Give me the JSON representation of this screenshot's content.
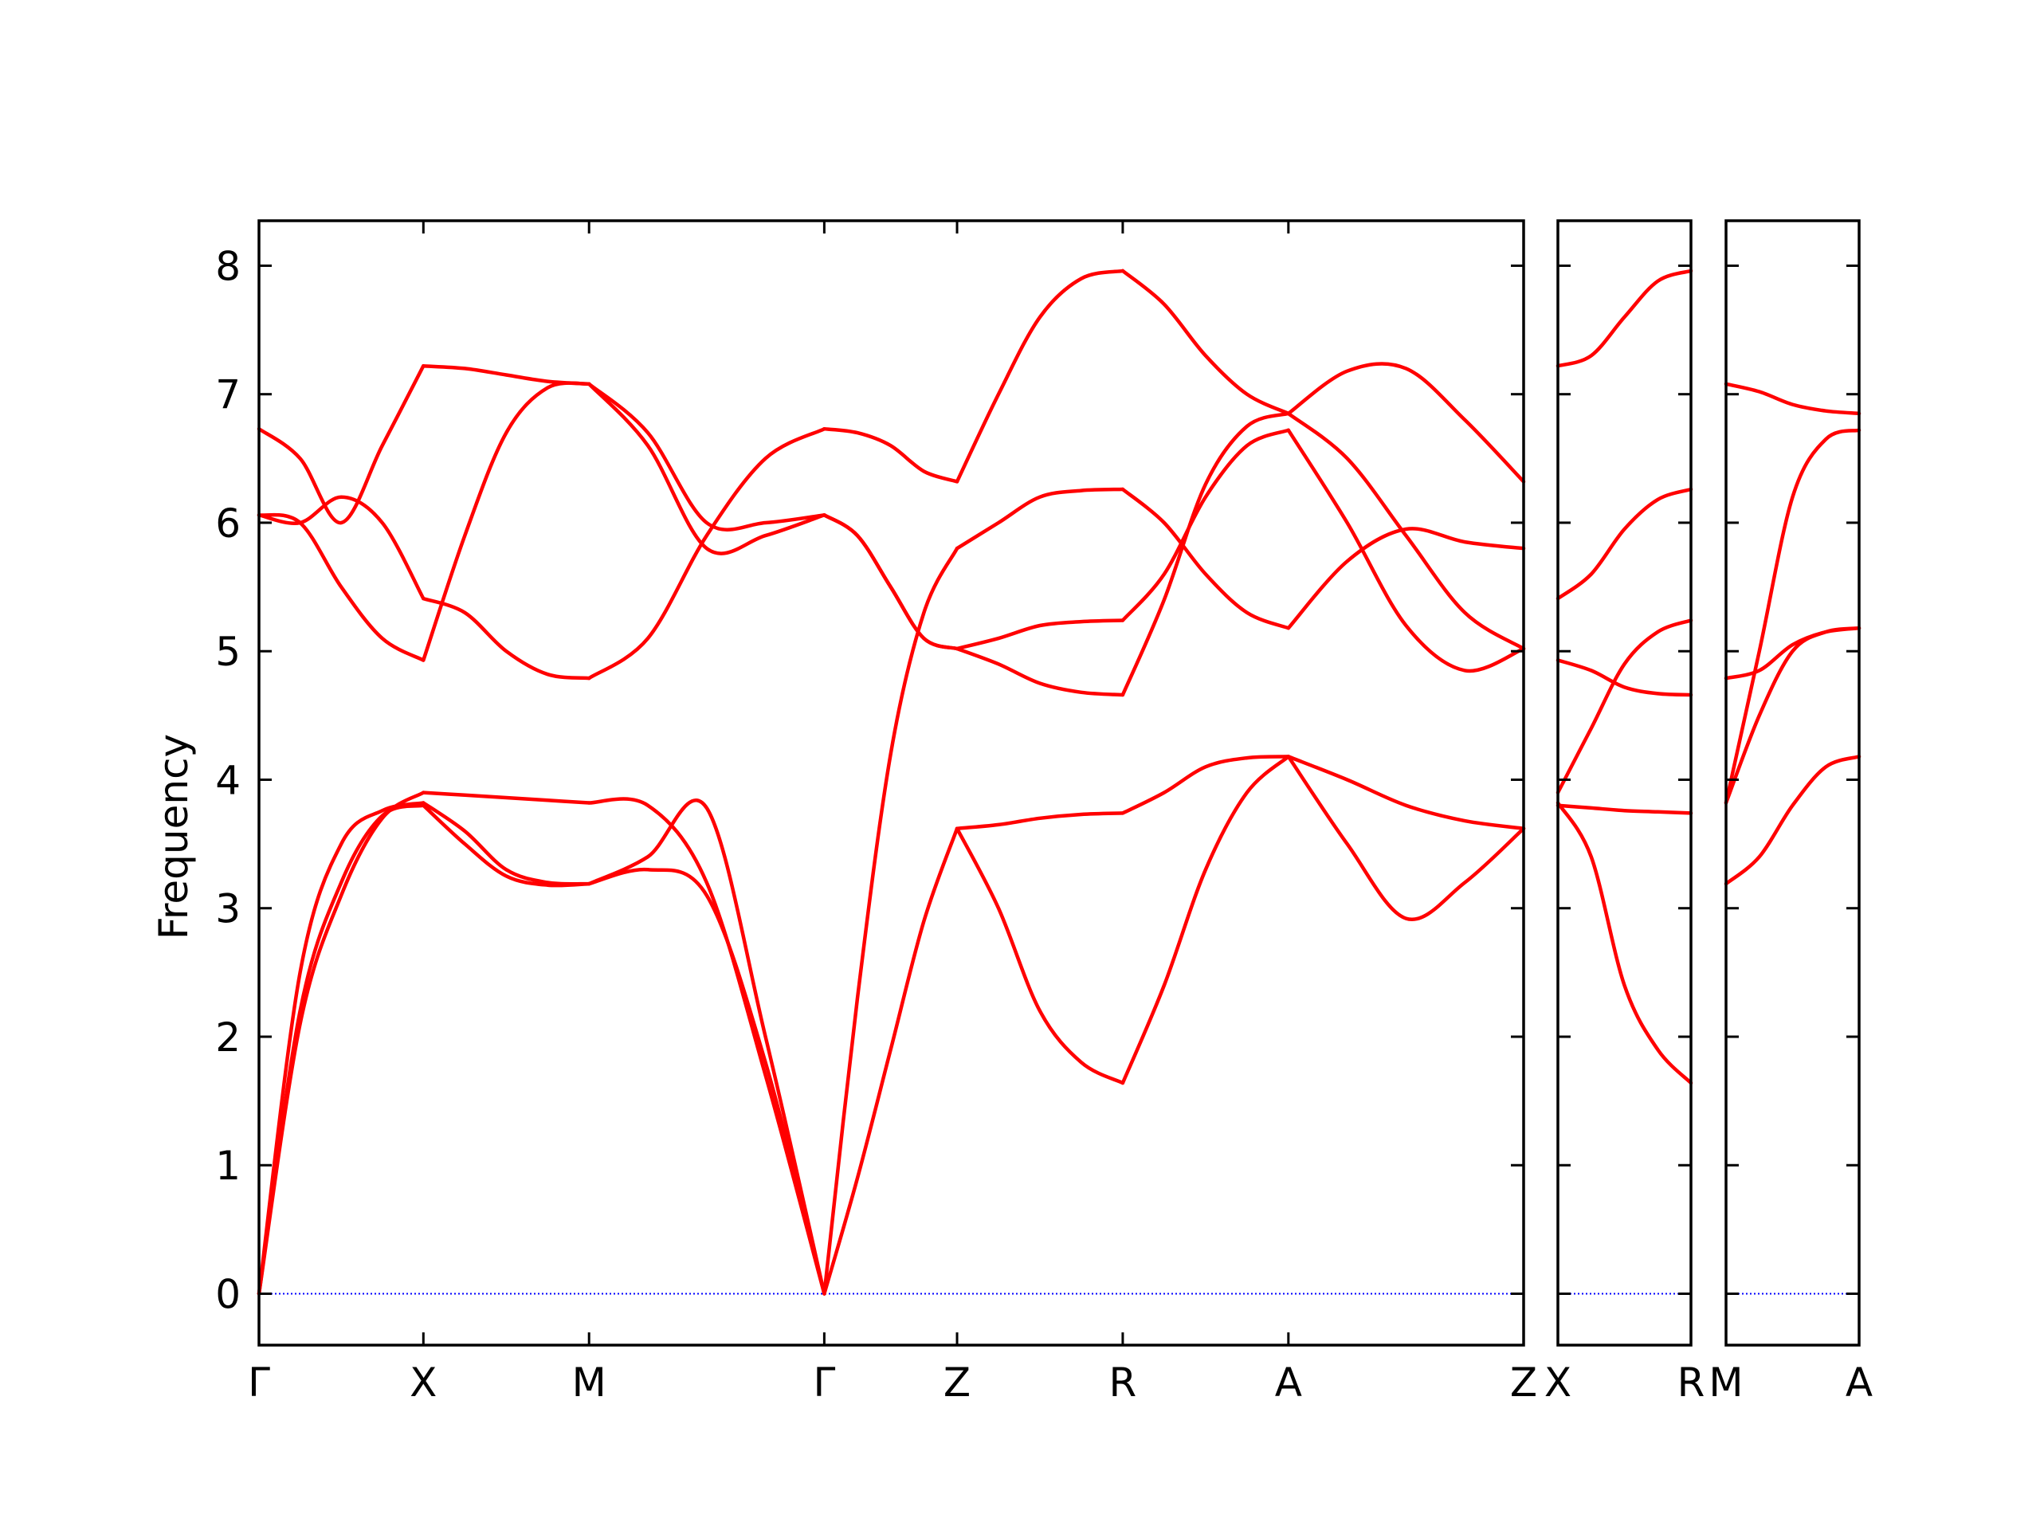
{
  "chart_data": {
    "type": "line",
    "title": "",
    "ylabel": "Frequency",
    "ylim": [
      -0.4,
      8.35
    ],
    "yticks": [
      "0",
      "1",
      "2",
      "3",
      "4",
      "5",
      "6",
      "7",
      "8"
    ],
    "zero_line": {
      "value": 0,
      "color": "#0000ff",
      "style": "dotted"
    },
    "band_color": "#ff0000",
    "panels": [
      {
        "ticks": [
          "Γ",
          "X",
          "M",
          "Γ",
          "Z",
          "R",
          "A",
          "Z"
        ],
        "segments": [
          {
            "from": "Γ",
            "to": "X",
            "bands": [
              [
                0,
                2.5,
                3.5,
                3.76,
                3.82
              ],
              [
                0,
                2.2,
                3.2,
                3.72,
                3.8
              ],
              [
                0,
                2.1,
                3.1,
                3.7,
                3.9
              ],
              [
                6.06,
                6.0,
                5.5,
                5.1,
                4.93
              ],
              [
                6.06,
                6.0,
                6.2,
                6.0,
                5.41
              ],
              [
                6.73,
                6.5,
                6.0,
                6.6,
                7.22
              ]
            ]
          },
          {
            "from": "X",
            "to": "M",
            "bands": [
              [
                3.82,
                3.6,
                3.3,
                3.2,
                3.19
              ],
              [
                3.8,
                3.5,
                3.25,
                3.18,
                3.19
              ],
              [
                3.9,
                3.88,
                3.86,
                3.84,
                3.82
              ],
              [
                4.93,
                5.9,
                6.7,
                7.05,
                7.08
              ],
              [
                5.41,
                5.3,
                5.0,
                4.82,
                4.79
              ],
              [
                7.22,
                7.2,
                7.15,
                7.1,
                7.08
              ]
            ]
          },
          {
            "from": "M",
            "to": "Γ",
            "bands": [
              [
                3.19,
                3.4,
                3.78,
                2.0,
                0
              ],
              [
                3.19,
                3.3,
                3.1,
                1.8,
                0
              ],
              [
                3.82,
                3.8,
                3.2,
                1.7,
                0
              ],
              [
                7.08,
                6.6,
                5.8,
                5.9,
                6.06
              ],
              [
                4.79,
                5.1,
                5.9,
                6.5,
                6.73
              ],
              [
                7.08,
                6.7,
                6.0,
                6.0,
                6.06
              ]
            ]
          },
          {
            "from": "Γ",
            "to": "Z",
            "bands": [
              [
                0,
                0.9,
                1.9,
                2.9,
                3.62
              ],
              [
                0,
                2.3,
                4.2,
                5.3,
                5.8
              ],
              [
                6.06,
                5.9,
                5.5,
                5.1,
                5.02
              ],
              [
                6.73,
                6.7,
                6.6,
                6.4,
                6.32
              ],
              [
                6.06,
                5.9,
                5.5,
                5.1,
                5.02
              ]
            ]
          },
          {
            "from": "Z",
            "to": "R",
            "bands": [
              [
                3.62,
                3.0,
                2.2,
                1.8,
                1.64
              ],
              [
                3.62,
                3.65,
                3.7,
                3.73,
                3.74
              ],
              [
                5.02,
                5.1,
                5.2,
                5.23,
                5.24
              ],
              [
                5.02,
                4.9,
                4.75,
                4.68,
                4.66
              ],
              [
                5.8,
                6.0,
                6.2,
                6.25,
                6.26
              ],
              [
                6.32,
                7.0,
                7.6,
                7.9,
                7.96
              ]
            ]
          },
          {
            "from": "R",
            "to": "A",
            "bands": [
              [
                1.64,
                2.4,
                3.3,
                3.9,
                4.18
              ],
              [
                3.74,
                3.9,
                4.1,
                4.17,
                4.18
              ],
              [
                5.24,
                5.6,
                6.2,
                6.6,
                6.72
              ],
              [
                4.66,
                5.4,
                6.3,
                6.75,
                6.85
              ],
              [
                6.26,
                6.0,
                5.6,
                5.3,
                5.18
              ],
              [
                7.96,
                7.7,
                7.3,
                7.0,
                6.85
              ]
            ]
          },
          {
            "from": "A",
            "to": "Z",
            "bands": [
              [
                4.18,
                3.5,
                2.92,
                3.2,
                3.62
              ],
              [
                4.18,
                4.0,
                3.8,
                3.68,
                3.62
              ],
              [
                6.72,
                6.0,
                5.2,
                4.85,
                5.02
              ],
              [
                6.85,
                6.5,
                5.9,
                5.3,
                5.02
              ],
              [
                5.18,
                5.7,
                5.95,
                5.85,
                5.8
              ],
              [
                6.85,
                7.18,
                7.2,
                6.8,
                6.32
              ]
            ]
          }
        ]
      },
      {
        "ticks": [
          "X",
          "R"
        ],
        "segments": [
          {
            "from": "X",
            "to": "R",
            "bands": [
              [
                3.82,
                3.4,
                2.4,
                1.9,
                1.64
              ],
              [
                3.8,
                3.78,
                3.76,
                3.75,
                3.74
              ],
              [
                3.9,
                4.4,
                4.9,
                5.15,
                5.24
              ],
              [
                4.93,
                4.85,
                4.72,
                4.67,
                4.66
              ],
              [
                5.41,
                5.6,
                5.95,
                6.18,
                6.26
              ],
              [
                7.22,
                7.3,
                7.6,
                7.88,
                7.96
              ]
            ]
          }
        ]
      },
      {
        "ticks": [
          "M",
          "A"
        ],
        "segments": [
          {
            "from": "M",
            "to": "A",
            "bands": [
              [
                3.19,
                3.4,
                3.8,
                4.1,
                4.18
              ],
              [
                3.82,
                4.5,
                5.0,
                5.15,
                5.18
              ],
              [
                4.79,
                4.85,
                5.05,
                5.15,
                5.18
              ],
              [
                3.82,
                5.0,
                6.2,
                6.65,
                6.72
              ],
              [
                7.08,
                7.02,
                6.92,
                6.87,
                6.85
              ]
            ]
          }
        ]
      }
    ]
  }
}
